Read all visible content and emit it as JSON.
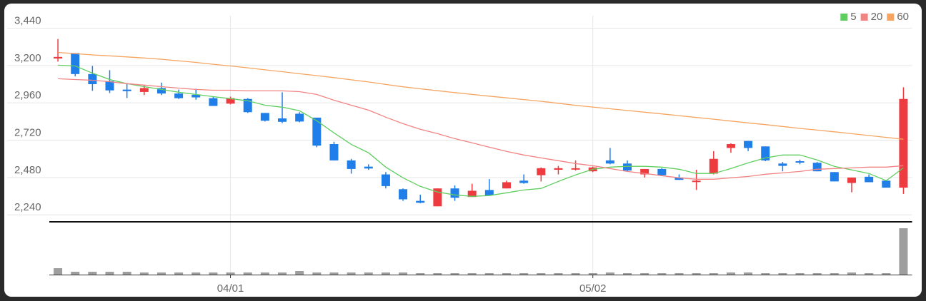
{
  "chart_data": {
    "type": "candlestick",
    "categories": [
      null,
      null,
      null,
      null,
      null,
      null,
      null,
      null,
      null,
      null,
      "04/01",
      null,
      null,
      null,
      null,
      null,
      null,
      null,
      null,
      null,
      null,
      null,
      null,
      null,
      null,
      null,
      null,
      null,
      null,
      null,
      null,
      "05/02",
      null,
      null,
      null,
      null,
      null,
      null,
      null,
      null,
      null,
      null,
      null,
      null,
      null,
      null,
      null,
      null,
      null,
      null
    ],
    "open": [
      3245,
      3280,
      3145,
      3100,
      3045,
      3030,
      3055,
      3020,
      3012,
      2990,
      2955,
      2985,
      2895,
      2860,
      2890,
      2865,
      2695,
      2590,
      2550,
      2500,
      2405,
      2330,
      2295,
      2410,
      2355,
      2400,
      2410,
      2460,
      2495,
      2530,
      2532,
      2520,
      2590,
      2570,
      2500,
      2535,
      2480,
      2455,
      2505,
      2670,
      2715,
      2680,
      2570,
      2585,
      2575,
      2515,
      2445,
      2485,
      2460,
      2415
    ],
    "high": [
      3370,
      3280,
      3197,
      3170,
      3087,
      3075,
      3090,
      3045,
      3050,
      3000,
      3000,
      2990,
      2895,
      3028,
      2900,
      2865,
      2710,
      2600,
      2565,
      2515,
      2410,
      2370,
      2410,
      2430,
      2440,
      2470,
      2460,
      2500,
      2545,
      2555,
      2590,
      2550,
      2670,
      2590,
      2535,
      2540,
      2500,
      2530,
      2650,
      2700,
      2715,
      2680,
      2580,
      2595,
      2580,
      2515,
      2480,
      2500,
      2465,
      3060
    ],
    "low": [
      3225,
      3130,
      3037,
      3023,
      2991,
      3010,
      3010,
      2985,
      2980,
      2940,
      2950,
      2895,
      2840,
      2830,
      2835,
      2675,
      2590,
      2505,
      2530,
      2410,
      2330,
      2315,
      2295,
      2330,
      2355,
      2365,
      2410,
      2440,
      2455,
      2500,
      2525,
      2515,
      2565,
      2520,
      2480,
      2490,
      2465,
      2400,
      2500,
      2640,
      2650,
      2585,
      2520,
      2565,
      2520,
      2455,
      2385,
      2450,
      2415,
      2375
    ],
    "close": [
      3255,
      3145,
      3080,
      3040,
      3035,
      3055,
      3020,
      2990,
      2995,
      2940,
      2990,
      2900,
      2845,
      2838,
      2840,
      2685,
      2590,
      2535,
      2538,
      2425,
      2340,
      2318,
      2410,
      2350,
      2395,
      2365,
      2450,
      2445,
      2540,
      2540,
      2540,
      2545,
      2570,
      2525,
      2535,
      2495,
      2465,
      2460,
      2600,
      2695,
      2670,
      2590,
      2555,
      2578,
      2520,
      2455,
      2480,
      2450,
      2415,
      2985
    ],
    "up_color": "#ee3b3f",
    "down_color": "#1f7ee8",
    "series": [
      {
        "name": "5",
        "color": "#5fce5f",
        "values": [
          3202,
          3197,
          3151,
          3110,
          3083,
          3064,
          3046,
          3028,
          3014,
          3000,
          2987,
          2973,
          2945,
          2932,
          2909,
          2845,
          2767,
          2693,
          2639,
          2547,
          2478,
          2423,
          2387,
          2368,
          2359,
          2364,
          2382,
          2400,
          2410,
          2455,
          2497,
          2533,
          2547,
          2552,
          2552,
          2547,
          2533,
          2506,
          2506,
          2538,
          2574,
          2606,
          2625,
          2625,
          2593,
          2552,
          2529,
          2506,
          2460,
          2542
        ]
      },
      {
        "name": "20",
        "color": "#f28383",
        "values": [
          3115,
          3110,
          3105,
          3096,
          3083,
          3074,
          3064,
          3055,
          3046,
          3041,
          3041,
          3037,
          3037,
          3037,
          3032,
          3014,
          2977,
          2945,
          2913,
          2868,
          2826,
          2790,
          2762,
          2730,
          2703,
          2675,
          2648,
          2625,
          2606,
          2588,
          2570,
          2556,
          2538,
          2519,
          2506,
          2492,
          2478,
          2469,
          2469,
          2478,
          2487,
          2501,
          2510,
          2519,
          2533,
          2538,
          2542,
          2547,
          2547,
          2556
        ]
      },
      {
        "name": "60",
        "color": "#f5a561",
        "values": [
          3284,
          3276,
          3268,
          3262,
          3255,
          3248,
          3240,
          3230,
          3220,
          3208,
          3197,
          3185,
          3172,
          3160,
          3147,
          3135,
          3122,
          3108,
          3094,
          3078,
          3063,
          3050,
          3038,
          3026,
          3014,
          3003,
          2992,
          2981,
          2970,
          2957,
          2944,
          2933,
          2922,
          2911,
          2900,
          2889,
          2878,
          2866,
          2855,
          2843,
          2831,
          2820,
          2808,
          2796,
          2785,
          2774,
          2762,
          2750,
          2738,
          2726
        ]
      }
    ],
    "volume": {
      "color": "#9e9e9e",
      "values": [
        9,
        4,
        4,
        4,
        4,
        3,
        3,
        3,
        3,
        3,
        3,
        3,
        3,
        3,
        5,
        3,
        3,
        3,
        3,
        3,
        3,
        2,
        2,
        2,
        2,
        2,
        2,
        2,
        2,
        2,
        2,
        2,
        3,
        2,
        2,
        2,
        2,
        2,
        2,
        3,
        3,
        2,
        2,
        2,
        2,
        2,
        3,
        2,
        2,
        65
      ]
    },
    "ylim": [
      2200,
      3520
    ],
    "yticks": [
      {
        "value": 2240,
        "label": "2,240"
      },
      {
        "value": 2480,
        "label": "2,480"
      },
      {
        "value": 2720,
        "label": "2,720"
      },
      {
        "value": 2960,
        "label": "2,960"
      },
      {
        "value": 3200,
        "label": "3,200"
      },
      {
        "value": 3440,
        "label": "3,440"
      }
    ],
    "grid": true,
    "legend": "top-right"
  }
}
